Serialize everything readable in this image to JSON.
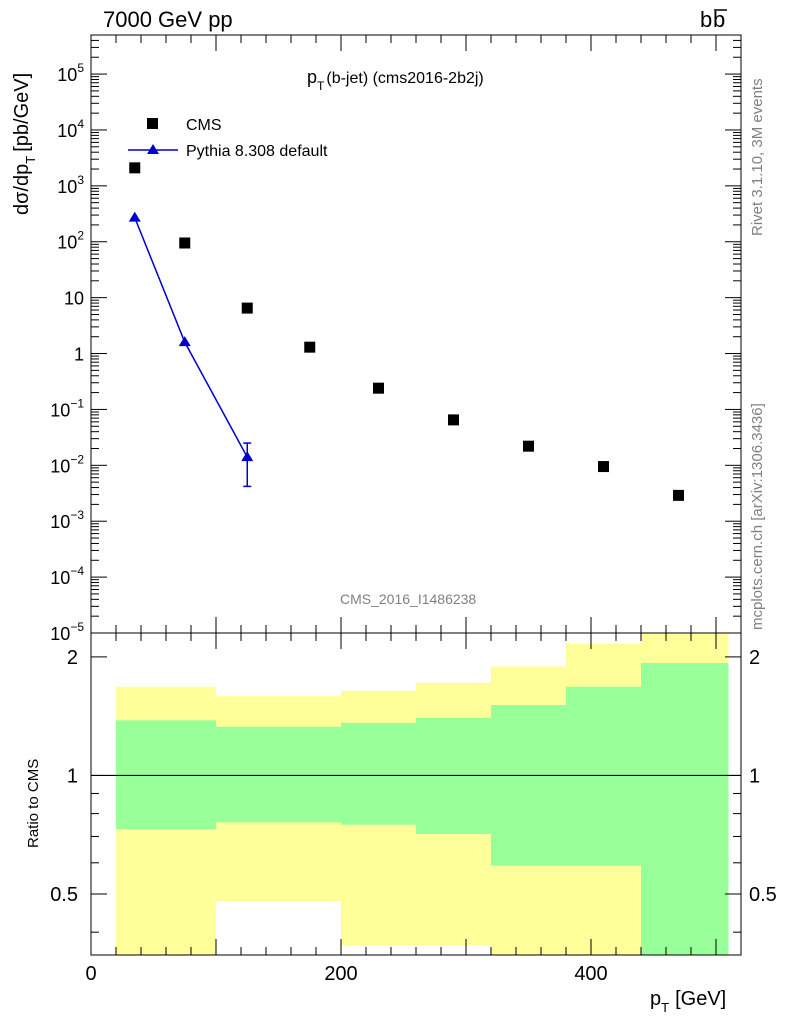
{
  "header": {
    "left": "7000 GeV pp",
    "right_main": "b",
    "right_bar": "b"
  },
  "side_labels": {
    "top": "Rivet 3.1.10,  3M events",
    "bottom": "mcplots.cern.ch [arXiv:1306.3436]"
  },
  "chart_data": [
    {
      "type": "scatter",
      "title_main": "p",
      "title_sub": "T",
      "title_rest": "(b-jet) (cms2016-2b2j)",
      "ylabel_main": "dσ/dp",
      "ylabel_sub": "T",
      "ylabel_unit": "[pb/GeV]",
      "watermark": "CMS_2016_I1486238",
      "yscale": "log",
      "xlim": [
        0,
        520
      ],
      "ylim": [
        1e-05,
        500000.0
      ],
      "ytick_labels": [
        {
          "base": "10",
          "exp": "5"
        },
        {
          "base": "10",
          "exp": "4"
        },
        {
          "base": "10",
          "exp": "3"
        },
        {
          "base": "10",
          "exp": "2"
        },
        {
          "base": "10",
          "exp": ""
        },
        {
          "base": "1",
          "exp": ""
        },
        {
          "base": "10",
          "exp": "−1"
        },
        {
          "base": "10",
          "exp": "−2"
        },
        {
          "base": "10",
          "exp": "−3"
        },
        {
          "base": "10",
          "exp": "−4"
        },
        {
          "base": "10",
          "exp": "−5"
        }
      ],
      "series": [
        {
          "name": "CMS",
          "color": "#000000",
          "marker": "square",
          "x": [
            35,
            75,
            125,
            175,
            230,
            290,
            350,
            410,
            470
          ],
          "y": [
            2100,
            95,
            6.5,
            1.3,
            0.24,
            0.065,
            0.022,
            0.0095,
            0.0029
          ]
        },
        {
          "name": "Pythia 8.308 default",
          "color": "#0000cc",
          "marker": "triangle",
          "x": [
            35,
            75,
            125
          ],
          "y": [
            270,
            1.6,
            0.014
          ],
          "yerr_low": [
            null,
            null,
            0.0042
          ],
          "yerr_high": [
            null,
            null,
            0.025
          ]
        }
      ]
    },
    {
      "type": "area",
      "ylabel": "Ratio to CMS",
      "xlabel_main": "p",
      "xlabel_sub": "T",
      "xlabel_unit": "[GeV]",
      "xlim": [
        0,
        520
      ],
      "ylim": [
        0.35,
        2.3
      ],
      "yscale": "log",
      "xtick_labels": [
        "0",
        "200",
        "400"
      ],
      "ytick_labels": [
        "0.5",
        "1",
        "2"
      ],
      "bins": [
        20,
        100,
        150,
        200,
        260,
        320,
        380,
        440,
        510
      ],
      "band_inner": {
        "color": "#99ff99",
        "lo": [
          0.73,
          0.76,
          0.76,
          0.75,
          0.71,
          0.59,
          0.59,
          0.34
        ],
        "hi": [
          1.38,
          1.33,
          1.33,
          1.36,
          1.4,
          1.51,
          1.68,
          1.93
        ]
      },
      "band_outer": {
        "color": "#ffff99",
        "lo": [
          0.3,
          0.48,
          0.48,
          0.37,
          0.37,
          0.3,
          0.3,
          0.3
        ],
        "hi": [
          1.68,
          1.59,
          1.59,
          1.64,
          1.72,
          1.89,
          2.16,
          2.4
        ]
      },
      "reference_line": 1
    }
  ]
}
